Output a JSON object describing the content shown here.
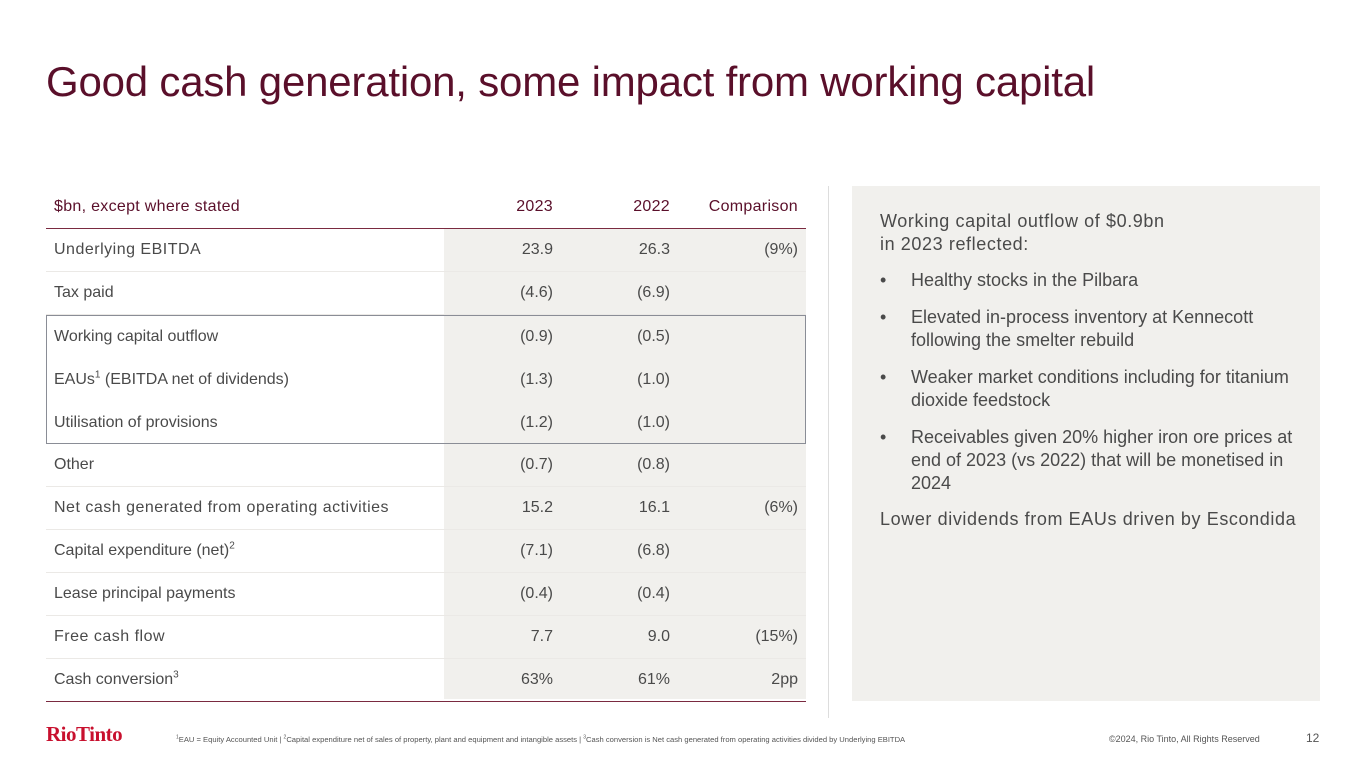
{
  "title": "Good cash generation, some impact from working capital",
  "table": {
    "headers": {
      "label": "$bn, except where stated",
      "y2023": "2023",
      "y2022": "2022",
      "comparison": "Comparison"
    },
    "rows": [
      {
        "label": "Underlying EBITDA",
        "sup": "",
        "y2023": "23.9",
        "y2022": "26.3",
        "comparison": "(9%)"
      },
      {
        "label": "Tax paid",
        "sup": "",
        "y2023": "(4.6)",
        "y2022": "(6.9)",
        "comparison": ""
      },
      {
        "label": "Working capital outflow",
        "sup": "",
        "y2023": "(0.9)",
        "y2022": "(0.5)",
        "comparison": ""
      },
      {
        "label": "EAUs",
        "sup": "1",
        "label_suffix": " (EBITDA net of dividends)",
        "y2023": "(1.3)",
        "y2022": "(1.0)",
        "comparison": ""
      },
      {
        "label": "Utilisation of provisions",
        "sup": "",
        "y2023": "(1.2)",
        "y2022": "(1.0)",
        "comparison": ""
      },
      {
        "label": "Other",
        "sup": "",
        "y2023": "(0.7)",
        "y2022": "(0.8)",
        "comparison": ""
      },
      {
        "label": "Net cash generated from operating activities",
        "sup": "",
        "y2023": "15.2",
        "y2022": "16.1",
        "comparison": "(6%)"
      },
      {
        "label": "Capital expenditure (net)",
        "sup": "2",
        "y2023": "(7.1)",
        "y2022": "(6.8)",
        "comparison": ""
      },
      {
        "label": "Lease principal payments",
        "sup": "",
        "y2023": "(0.4)",
        "y2022": "(0.4)",
        "comparison": ""
      },
      {
        "label": "Free cash flow",
        "sup": "",
        "y2023": "7.7",
        "y2022": "9.0",
        "comparison": "(15%)"
      },
      {
        "label": "Cash conversion",
        "sup": "3",
        "y2023": "63%",
        "y2022": "61%",
        "comparison": "2pp"
      }
    ]
  },
  "panel": {
    "lead": "Working capital outflow of $0.9bn in 2023 reflected:",
    "lead_line1": "Working capital outflow of $0.9bn",
    "lead_line2": "in 2023 reflected:",
    "bullet_glyph": "•",
    "bullets": [
      "Healthy stocks in the Pilbara",
      "Elevated in-process inventory at Kennecott following the smelter rebuild",
      "Weaker market conditions including for titanium dioxide feedstock",
      "Receivables given 20% higher iron ore prices at end of 2023 (vs 2022) that will be monetised in 2024"
    ],
    "tail": "Lower dividends from EAUs driven by Escondida"
  },
  "footer": {
    "logo": "RioTinto",
    "footnote_1_sup": "1",
    "footnote_1": "EAU = Equity Accounted Unit | ",
    "footnote_2_sup": "2",
    "footnote_2": "Capital expenditure net of sales of property, plant and equipment and intangible assets | ",
    "footnote_3_sup": "3",
    "footnote_3": "Cash conversion is Net cash generated from operating activities divided by Underlying EBITDA",
    "copyright": "©2024, Rio Tinto, All Rights Reserved",
    "page_number": "12"
  },
  "colors": {
    "title": "#5a0f2a",
    "brand_red": "#c8102e",
    "panel_bg": "#f1f0ed",
    "rule": "#7a2a40",
    "highlight_border": "#8a8d96"
  }
}
